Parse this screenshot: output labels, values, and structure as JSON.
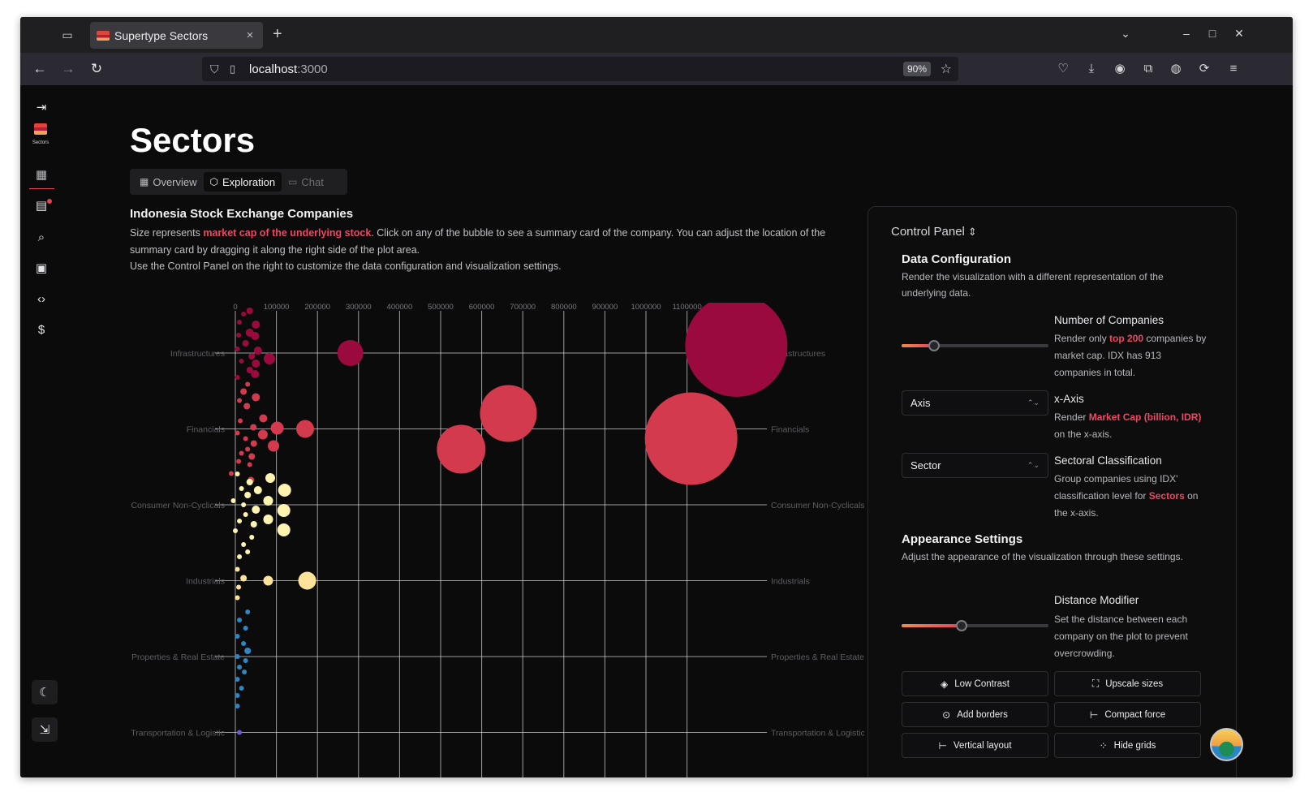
{
  "browser": {
    "tab_title": "Supertype Sectors",
    "tab_close": "×",
    "new_tab": "+",
    "url_host": "localhost",
    "url_port": ":3000",
    "zoom": "90%"
  },
  "sidebar": {
    "logo_label": "Sectors"
  },
  "page": {
    "title": "Sectors",
    "tabs": [
      {
        "label": "Overview"
      },
      {
        "label": "Exploration"
      },
      {
        "label": "Chat"
      }
    ]
  },
  "intro": {
    "title": "Indonesia Stock Exchange Companies",
    "line1_a": "Size represents ",
    "line1_hl": "market cap of the underlying stock",
    "line1_b": ". Click on any of the bubble to see a summary card of the company. You can adjust the location of the summary card by dragging it along the right side of the plot area.",
    "line2": "Use the Control Panel on the right to customize the data configuration and visualization settings."
  },
  "chart_data": {
    "type": "scatter",
    "x_ticks": [
      "0",
      "100000",
      "200000",
      "300000",
      "400000",
      "500000",
      "600000",
      "700000",
      "800000",
      "900000",
      "1000000",
      "1100000"
    ],
    "y_categories": [
      "Infrastructures",
      "Financials",
      "Consumer Non-Cyclicals",
      "Industrials",
      "Properties & Real Estate",
      "Transportation & Logistic"
    ],
    "y_categories_right": [
      "Infrastructures",
      "Financials",
      "Consumer Non-Cyclicals",
      "Industrials",
      "Properties & Real Estate",
      "Transportation & Logistic"
    ],
    "grid": true,
    "sector_colors": {
      "Infrastructures": "#9b0a3e",
      "Financials": "#d43a4e",
      "Consumer Non-Cyclicals": "#fff3b0",
      "Industrials": "#ffe39a",
      "Properties & Real Estate": "#2f86c3",
      "Transportation & Logistic": "#6a5fc7"
    },
    "bubbles": [
      {
        "sector": "Infrastructures",
        "x": 1220000,
        "dy": -9,
        "r": 63
      },
      {
        "sector": "Infrastructures",
        "x": 280000,
        "dy": 0,
        "r": 16
      },
      {
        "sector": "Infrastructures",
        "x": 83000,
        "dy": 7,
        "r": 7
      },
      {
        "sector": "Infrastructures",
        "x": 50000,
        "dy": -35,
        "r": 5
      },
      {
        "sector": "Infrastructures",
        "x": 35000,
        "dy": -25,
        "r": 5
      },
      {
        "sector": "Infrastructures",
        "x": 48000,
        "dy": -21,
        "r": 5
      },
      {
        "sector": "Infrastructures",
        "x": 25000,
        "dy": -12,
        "r": 4
      },
      {
        "sector": "Infrastructures",
        "x": 55000,
        "dy": -3,
        "r": 5
      },
      {
        "sector": "Infrastructures",
        "x": 40000,
        "dy": 4,
        "r": 4
      },
      {
        "sector": "Infrastructures",
        "x": 50000,
        "dy": 13,
        "r": 5
      },
      {
        "sector": "Infrastructures",
        "x": 35000,
        "dy": 21,
        "r": 4
      },
      {
        "sector": "Infrastructures",
        "x": 48000,
        "dy": 26,
        "r": 5
      },
      {
        "sector": "Infrastructures",
        "x": 20000,
        "dy": -48,
        "r": 3
      },
      {
        "sector": "Infrastructures",
        "x": 35000,
        "dy": -52,
        "r": 4
      },
      {
        "sector": "Infrastructures",
        "x": 10000,
        "dy": -38,
        "r": 3
      },
      {
        "sector": "Infrastructures",
        "x": 8000,
        "dy": -22,
        "r": 3
      },
      {
        "sector": "Infrastructures",
        "x": 5000,
        "dy": -5,
        "r": 3
      },
      {
        "sector": "Infrastructures",
        "x": 15000,
        "dy": 10,
        "r": 3
      },
      {
        "sector": "Infrastructures",
        "x": 5000,
        "dy": 30,
        "r": 3
      },
      {
        "sector": "Financials",
        "x": 1110000,
        "dy": 12,
        "r": 57
      },
      {
        "sector": "Financials",
        "x": 665000,
        "dy": -19,
        "r": 35
      },
      {
        "sector": "Financials",
        "x": 550000,
        "dy": 25,
        "r": 30
      },
      {
        "sector": "Financials",
        "x": 170000,
        "dy": 0,
        "r": 11
      },
      {
        "sector": "Financials",
        "x": 102000,
        "dy": -1,
        "r": 8
      },
      {
        "sector": "Financials",
        "x": 93000,
        "dy": 21,
        "r": 7
      },
      {
        "sector": "Financials",
        "x": 67000,
        "dy": 7,
        "r": 6
      },
      {
        "sector": "Financials",
        "x": 50000,
        "dy": -39,
        "r": 5
      },
      {
        "sector": "Financials",
        "x": 68000,
        "dy": -13,
        "r": 5
      },
      {
        "sector": "Financials",
        "x": 44000,
        "dy": -2,
        "r": 4
      },
      {
        "sector": "Financials",
        "x": 45000,
        "dy": 18,
        "r": 4
      },
      {
        "sector": "Financials",
        "x": 28000,
        "dy": -28,
        "r": 4
      },
      {
        "sector": "Financials",
        "x": 20000,
        "dy": -46,
        "r": 4
      },
      {
        "sector": "Financials",
        "x": 30000,
        "dy": -55,
        "r": 3
      },
      {
        "sector": "Financials",
        "x": 10000,
        "dy": -35,
        "r": 3
      },
      {
        "sector": "Financials",
        "x": 12000,
        "dy": -10,
        "r": 3
      },
      {
        "sector": "Financials",
        "x": 5000,
        "dy": 5,
        "r": 3
      },
      {
        "sector": "Financials",
        "x": 25000,
        "dy": 12,
        "r": 3
      },
      {
        "sector": "Financials",
        "x": 30000,
        "dy": 25,
        "r": 3
      },
      {
        "sector": "Financials",
        "x": 15000,
        "dy": 30,
        "r": 3
      },
      {
        "sector": "Financials",
        "x": 40000,
        "dy": 34,
        "r": 4
      },
      {
        "sector": "Financials",
        "x": 8000,
        "dy": 40,
        "r": 3
      },
      {
        "sector": "Financials",
        "x": 35000,
        "dy": 44,
        "r": 3
      },
      {
        "sector": "Financials",
        "x": -10000,
        "dy": 55,
        "r": 3
      },
      {
        "sector": "Financials",
        "x": 38000,
        "dy": 63,
        "r": 4
      },
      {
        "sector": "Consumer Non-Cyclicals",
        "x": 120000,
        "dy": -18,
        "r": 8
      },
      {
        "sector": "Consumer Non-Cyclicals",
        "x": 118000,
        "dy": 7,
        "r": 8
      },
      {
        "sector": "Consumer Non-Cyclicals",
        "x": 118000,
        "dy": 31,
        "r": 8
      },
      {
        "sector": "Consumer Non-Cyclicals",
        "x": 85000,
        "dy": -33,
        "r": 6
      },
      {
        "sector": "Consumer Non-Cyclicals",
        "x": 80000,
        "dy": -5,
        "r": 6
      },
      {
        "sector": "Consumer Non-Cyclicals",
        "x": 80000,
        "dy": 18,
        "r": 6
      },
      {
        "sector": "Consumer Non-Cyclicals",
        "x": 55000,
        "dy": -18,
        "r": 5
      },
      {
        "sector": "Consumer Non-Cyclicals",
        "x": 50000,
        "dy": 6,
        "r": 5
      },
      {
        "sector": "Consumer Non-Cyclicals",
        "x": 45000,
        "dy": 24,
        "r": 4
      },
      {
        "sector": "Consumer Non-Cyclicals",
        "x": 35000,
        "dy": -28,
        "r": 4
      },
      {
        "sector": "Consumer Non-Cyclicals",
        "x": 30000,
        "dy": -12,
        "r": 4
      },
      {
        "sector": "Consumer Non-Cyclicals",
        "x": 20000,
        "dy": 0,
        "r": 3
      },
      {
        "sector": "Consumer Non-Cyclicals",
        "x": 25000,
        "dy": 12,
        "r": 3
      },
      {
        "sector": "Consumer Non-Cyclicals",
        "x": 15000,
        "dy": -20,
        "r": 3
      },
      {
        "sector": "Consumer Non-Cyclicals",
        "x": 10000,
        "dy": 20,
        "r": 3
      },
      {
        "sector": "Consumer Non-Cyclicals",
        "x": 5000,
        "dy": -38,
        "r": 3
      },
      {
        "sector": "Consumer Non-Cyclicals",
        "x": 0,
        "dy": 32,
        "r": 3
      },
      {
        "sector": "Consumer Non-Cyclicals",
        "x": -5000,
        "dy": -5,
        "r": 3
      },
      {
        "sector": "Consumer Non-Cyclicals",
        "x": 40000,
        "dy": 40,
        "r": 3
      },
      {
        "sector": "Consumer Non-Cyclicals",
        "x": 20000,
        "dy": 49,
        "r": 3
      },
      {
        "sector": "Consumer Non-Cyclicals",
        "x": 30000,
        "dy": 58,
        "r": 3
      },
      {
        "sector": "Consumer Non-Cyclicals",
        "x": 10000,
        "dy": 64,
        "r": 3
      },
      {
        "sector": "Industrials",
        "x": 175000,
        "dy": 0,
        "r": 11
      },
      {
        "sector": "Industrials",
        "x": 80000,
        "dy": 0,
        "r": 6
      },
      {
        "sector": "Industrials",
        "x": 20000,
        "dy": -3,
        "r": 4
      },
      {
        "sector": "Industrials",
        "x": 8000,
        "dy": 8,
        "r": 3
      },
      {
        "sector": "Industrials",
        "x": 5000,
        "dy": -14,
        "r": 3
      },
      {
        "sector": "Industrials",
        "x": 5000,
        "dy": 21,
        "r": 3
      },
      {
        "sector": "Properties & Real Estate",
        "x": 30000,
        "dy": -55,
        "r": 3
      },
      {
        "sector": "Properties & Real Estate",
        "x": 10000,
        "dy": -45,
        "r": 3
      },
      {
        "sector": "Properties & Real Estate",
        "x": 25000,
        "dy": -35,
        "r": 3
      },
      {
        "sector": "Properties & Real Estate",
        "x": 5000,
        "dy": -25,
        "r": 3
      },
      {
        "sector": "Properties & Real Estate",
        "x": 20000,
        "dy": -16,
        "r": 3
      },
      {
        "sector": "Properties & Real Estate",
        "x": 30000,
        "dy": -7,
        "r": 4
      },
      {
        "sector": "Properties & Real Estate",
        "x": 5000,
        "dy": 0,
        "r": 3
      },
      {
        "sector": "Properties & Real Estate",
        "x": 25000,
        "dy": 5,
        "r": 3
      },
      {
        "sector": "Properties & Real Estate",
        "x": 10000,
        "dy": 13,
        "r": 3
      },
      {
        "sector": "Properties & Real Estate",
        "x": 22000,
        "dy": 19,
        "r": 3
      },
      {
        "sector": "Properties & Real Estate",
        "x": 5000,
        "dy": 28,
        "r": 3
      },
      {
        "sector": "Properties & Real Estate",
        "x": 15000,
        "dy": 39,
        "r": 3
      },
      {
        "sector": "Properties & Real Estate",
        "x": 5000,
        "dy": 48,
        "r": 3
      },
      {
        "sector": "Properties & Real Estate",
        "x": 5000,
        "dy": 61,
        "r": 3
      },
      {
        "sector": "Transportation & Logistic",
        "x": 10000,
        "dy": 0,
        "r": 3
      }
    ]
  },
  "control_panel": {
    "title": "Control Panel",
    "data_config": {
      "title": "Data Configuration",
      "subtitle": "Render the visualization with a different representation of the underlying data."
    },
    "num_companies": {
      "label": "Number of Companies",
      "text_a": "Render only ",
      "text_hl": "top 200",
      "text_b": " companies by market cap. IDX has 913 companies in total.",
      "value": 200,
      "max": 913
    },
    "x_axis": {
      "select_value": "Axis",
      "label": "x-Axis",
      "text_a": "Render ",
      "text_hl": "Market Cap (billion, IDR)",
      "text_b": " on the x-axis."
    },
    "sectoral": {
      "select_value": "Sector",
      "label": "Sectoral Classification",
      "text_a": "Group companies using IDX' classification level for ",
      "text_hl": "Sectors",
      "text_b": " on the x-axis."
    },
    "appearance": {
      "title": "Appearance Settings",
      "subtitle": "Adjust the appearance of the visualization through these settings."
    },
    "distance": {
      "label": "Distance Modifier",
      "text": "Set the distance between each company on the plot to prevent overcrowding.",
      "value_fraction": 0.41
    },
    "buttons": {
      "low_contrast": "Low Contrast",
      "upscale_sizes": "Upscale sizes",
      "add_borders": "Add borders",
      "compact_force": "Compact force",
      "vertical_layout": "Vertical layout",
      "hide_grids": "Hide grids"
    }
  }
}
